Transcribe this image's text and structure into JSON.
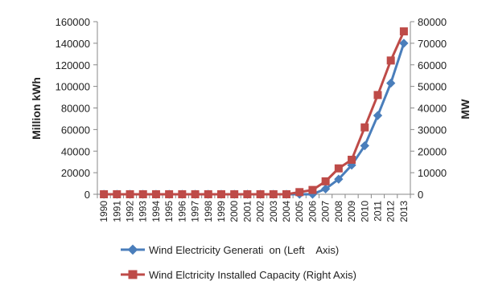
{
  "chart_data": {
    "type": "line",
    "x": [
      "1990",
      "1991",
      "1992",
      "1993",
      "1994",
      "1995",
      "1996",
      "1997",
      "1998",
      "1999",
      "2000",
      "2001",
      "2002",
      "2003",
      "2004",
      "2005",
      "2006",
      "2007",
      "2008",
      "2009",
      "2010",
      "2011",
      "2012",
      "2013"
    ],
    "ylabel_left": "Million kWh",
    "ylabel_right": "MW",
    "ylim_left": [
      0,
      160000
    ],
    "ylim_right": [
      0,
      80000
    ],
    "yticks_left": [
      "0",
      "20000",
      "40000",
      "60000",
      "80000",
      "100000",
      "120000",
      "140000",
      "160000"
    ],
    "yticks_right": [
      "0",
      "10000",
      "20000",
      "30000",
      "40000",
      "50000",
      "60000",
      "70000",
      "80000"
    ],
    "grid": false,
    "legend_position": "bottom",
    "series": [
      {
        "name": "Wind Electricity Generati  on (Left    Axis)",
        "axis": "left",
        "color": "#4a7ebb",
        "marker": "diamond",
        "values": [
          0,
          0,
          0,
          0,
          0,
          0,
          0,
          0,
          0,
          0,
          0,
          0,
          0,
          0,
          0,
          0,
          0,
          5000,
          14000,
          27000,
          45000,
          73000,
          103000,
          140000
        ]
      },
      {
        "name": "Wind Elctricity Installed Capacity (Right Axis)",
        "axis": "right",
        "color": "#be4b48",
        "marker": "square",
        "values": [
          0,
          0,
          0,
          0,
          0,
          0,
          0,
          0,
          0,
          0,
          0,
          0,
          0,
          0,
          0,
          1000,
          2000,
          6000,
          12000,
          16000,
          31000,
          46000,
          62000,
          75500
        ]
      }
    ]
  }
}
